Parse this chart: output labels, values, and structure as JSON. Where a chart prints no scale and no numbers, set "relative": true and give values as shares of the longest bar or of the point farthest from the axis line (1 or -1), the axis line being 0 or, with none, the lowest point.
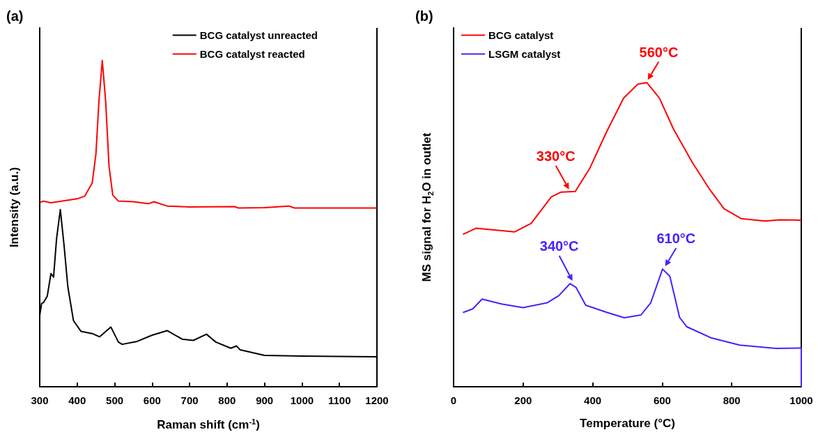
{
  "chart_data": [
    {
      "type": "line",
      "title": "(a)",
      "xlabel": "Raman shift (cm$^{-1}$)",
      "ylabel": "Intensity (a.u.)",
      "relative": true,
      "legend": "top right",
      "grid": false,
      "marker": "none",
      "xlim": [
        300,
        1200
      ],
      "xticks": [
        300,
        400,
        500,
        600,
        700,
        800,
        900,
        1000,
        1100,
        1200
      ],
      "series": [
        {
          "name": "BCG catalyst unreacted",
          "color": "#000000",
          "x": [
            300,
            305,
            310,
            320,
            330,
            337,
            345,
            355,
            365,
            375,
            390,
            410,
            440,
            460,
            490,
            510,
            520,
            560,
            600,
            640,
            680,
            710,
            745,
            770,
            810,
            825,
            835,
            900,
            1000,
            1200
          ],
          "values": [
            0.218,
            0.255,
            0.258,
            0.277,
            0.347,
            0.336,
            0.454,
            0.543,
            0.433,
            0.307,
            0.203,
            0.17,
            0.163,
            0.153,
            0.183,
            0.137,
            0.13,
            0.139,
            0.158,
            0.172,
            0.146,
            0.142,
            0.161,
            0.137,
            0.118,
            0.125,
            0.113,
            0.096,
            0.094,
            0.092
          ]
        },
        {
          "name": "BCG catalyst reacted",
          "color": "#ff0000",
          "x": [
            300,
            310,
            330,
            400,
            420,
            440,
            450,
            458,
            467,
            476,
            485,
            495,
            510,
            550,
            590,
            605,
            640,
            700,
            820,
            830,
            900,
            965,
            980,
            1200
          ],
          "values": [
            0.565,
            0.569,
            0.564,
            0.576,
            0.584,
            0.624,
            0.713,
            0.875,
            1.0,
            0.875,
            0.676,
            0.587,
            0.569,
            0.567,
            0.561,
            0.567,
            0.554,
            0.551,
            0.552,
            0.548,
            0.549,
            0.554,
            0.548,
            0.548
          ]
        }
      ]
    },
    {
      "type": "line",
      "title": "(b)",
      "xlabel": "Temperature (°C)",
      "ylabel": "MS signal for H$_{2}$O in outlet",
      "relative": true,
      "legend": "top left",
      "grid": false,
      "marker": "none",
      "xlim": [
        0,
        1000
      ],
      "xticks": [
        0,
        200,
        400,
        600,
        800,
        1000
      ],
      "series": [
        {
          "name": "BCG catalyst",
          "color": "#ff0000",
          "x": [
            27,
            64,
            175,
            223,
            281,
            309,
            350,
            392,
            440,
            489,
            530,
            556,
            592,
            633,
            688,
            737,
            778,
            827,
            896,
            937,
            985,
            1000
          ],
          "values": [
            0.501,
            0.521,
            0.509,
            0.537,
            0.624,
            0.64,
            0.642,
            0.719,
            0.838,
            0.949,
            0.995,
            1.0,
            0.949,
            0.846,
            0.735,
            0.648,
            0.585,
            0.553,
            0.545,
            0.549,
            0.548,
            0.547
          ]
        },
        {
          "name": "LSGM catalyst",
          "color": "#4a1fff",
          "x": [
            27,
            55,
            82,
            138,
            200,
            269,
            303,
            335,
            352,
            380,
            442,
            491,
            539,
            567,
            601,
            622,
            650,
            671,
            740,
            823,
            927,
            996,
            1000,
            1000
          ],
          "values": [
            0.244,
            0.256,
            0.288,
            0.272,
            0.26,
            0.276,
            0.3,
            0.339,
            0.327,
            0.268,
            0.244,
            0.227,
            0.236,
            0.276,
            0.387,
            0.363,
            0.228,
            0.197,
            0.161,
            0.137,
            0.126,
            0.127,
            0.127,
            0
          ]
        }
      ],
      "annotations": [
        {
          "text": "330°C",
          "x": 330,
          "y": 0.64
        },
        {
          "text": "560°C",
          "x": 560,
          "y": 1.0
        },
        {
          "text": "340°C",
          "x": 340,
          "y": 0.339
        },
        {
          "text": "610°C",
          "x": 610,
          "y": 0.387
        }
      ]
    }
  ]
}
